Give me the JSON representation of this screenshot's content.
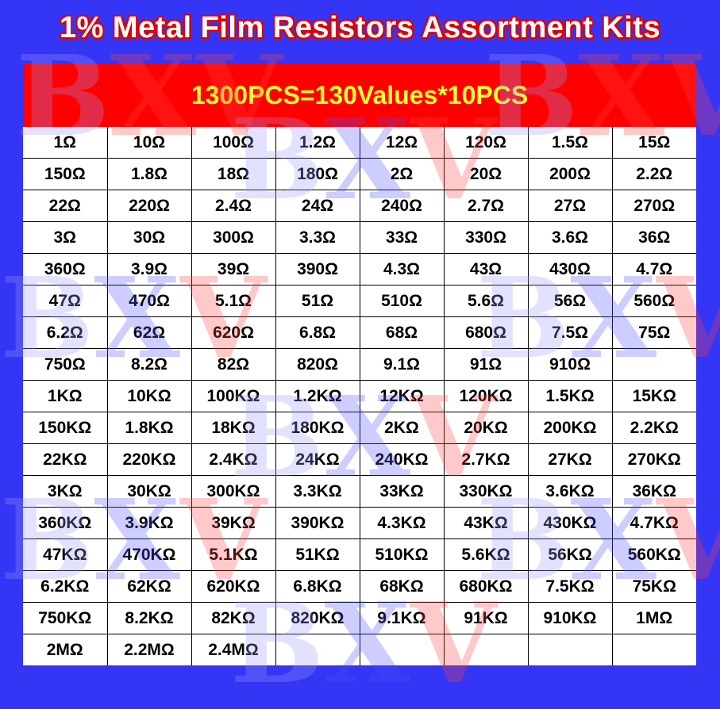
{
  "title": "1% Metal Film Resistors Assortment Kits",
  "banner": "1300PCS=130Values*10PCS",
  "watermark": "BXV",
  "colors": {
    "background": "#3535f5",
    "banner": "#ff0000",
    "banner_text": "#ffff33",
    "title_text": "#ffffff",
    "title_outline": "#dd0000"
  },
  "table": {
    "columns": 8,
    "rows": [
      [
        "1Ω",
        "10Ω",
        "100Ω",
        "1.2Ω",
        "12Ω",
        "120Ω",
        "1.5Ω",
        "15Ω"
      ],
      [
        "150Ω",
        "1.8Ω",
        "18Ω",
        "180Ω",
        "2Ω",
        "20Ω",
        "200Ω",
        "2.2Ω"
      ],
      [
        "22Ω",
        "220Ω",
        "2.4Ω",
        "24Ω",
        "240Ω",
        "2.7Ω",
        "27Ω",
        "270Ω"
      ],
      [
        "3Ω",
        "30Ω",
        "300Ω",
        "3.3Ω",
        "33Ω",
        "330Ω",
        "3.6Ω",
        "36Ω"
      ],
      [
        "360Ω",
        "3.9Ω",
        "39Ω",
        "390Ω",
        "4.3Ω",
        "43Ω",
        "430Ω",
        "4.7Ω"
      ],
      [
        "47Ω",
        "470Ω",
        "5.1Ω",
        "51Ω",
        "510Ω",
        "5.6Ω",
        "56Ω",
        "560Ω"
      ],
      [
        "6.2Ω",
        "62Ω",
        "620Ω",
        "6.8Ω",
        "68Ω",
        "680Ω",
        "7.5Ω",
        "75Ω"
      ],
      [
        "750Ω",
        "8.2Ω",
        "82Ω",
        "820Ω",
        "9.1Ω",
        "91Ω",
        "910Ω",
        ""
      ],
      [
        "1KΩ",
        "10KΩ",
        "100KΩ",
        "1.2KΩ",
        "12KΩ",
        "120KΩ",
        "1.5KΩ",
        "15KΩ"
      ],
      [
        "150KΩ",
        "1.8KΩ",
        "18KΩ",
        "180KΩ",
        "2KΩ",
        "20KΩ",
        "200KΩ",
        "2.2KΩ"
      ],
      [
        "22KΩ",
        "220KΩ",
        "2.4KΩ",
        "24KΩ",
        "240KΩ",
        "2.7KΩ",
        "27KΩ",
        "270KΩ"
      ],
      [
        "3KΩ",
        "30KΩ",
        "300KΩ",
        "3.3KΩ",
        "33KΩ",
        "330KΩ",
        "3.6KΩ",
        "36KΩ"
      ],
      [
        "360KΩ",
        "3.9KΩ",
        "39KΩ",
        "390KΩ",
        "4.3KΩ",
        "43KΩ",
        "430KΩ",
        "4.7KΩ"
      ],
      [
        "47KΩ",
        "470KΩ",
        "5.1KΩ",
        "51KΩ",
        "510KΩ",
        "5.6KΩ",
        "56KΩ",
        "560KΩ"
      ],
      [
        "6.2KΩ",
        "62KΩ",
        "620KΩ",
        "6.8KΩ",
        "68KΩ",
        "680KΩ",
        "7.5KΩ",
        "75KΩ"
      ],
      [
        "750KΩ",
        "8.2KΩ",
        "82KΩ",
        "820KΩ",
        "9.1KΩ",
        "91KΩ",
        "910KΩ",
        "1MΩ"
      ],
      [
        "2MΩ",
        "2.2MΩ",
        "2.4MΩ",
        "",
        "",
        "",
        "",
        ""
      ]
    ]
  }
}
